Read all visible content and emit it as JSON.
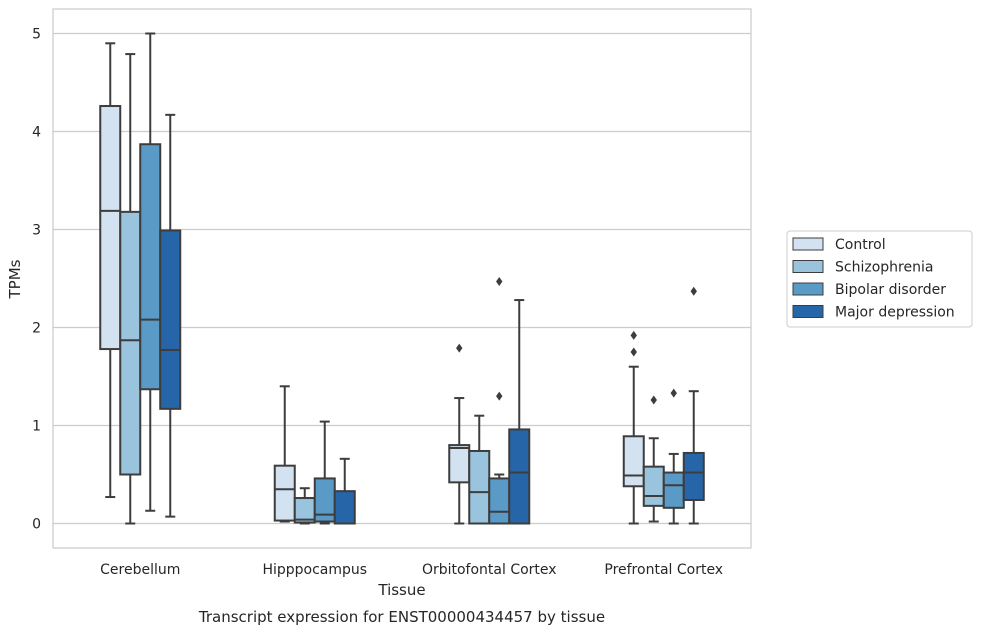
{
  "caption": "Transcript expression for ENST00000434457 by tissue",
  "chart_data": {
    "type": "box",
    "xlabel": "Tissue",
    "ylabel": "TPMs",
    "ylim": [
      -0.25,
      5.25
    ],
    "yticks": [
      0,
      1,
      2,
      3,
      4,
      5
    ],
    "grid": true,
    "legend_placement": "right",
    "categories": [
      "Cerebellum",
      "Hipppocampus",
      "Orbitofontal Cortex",
      "Prefrontal Cortex"
    ],
    "series": [
      {
        "name": "Control",
        "color": "#d2e2f1",
        "boxes": [
          {
            "whislo": 0.27,
            "q1": 1.78,
            "med": 3.19,
            "q3": 4.26,
            "whishi": 4.9,
            "fliers": []
          },
          {
            "whislo": 0.02,
            "q1": 0.03,
            "med": 0.35,
            "q3": 0.59,
            "whishi": 1.4,
            "fliers": []
          },
          {
            "whislo": 0.0,
            "q1": 0.42,
            "med": 0.77,
            "q3": 0.8,
            "whishi": 1.28,
            "fliers": [
              1.79
            ]
          },
          {
            "whislo": 0.0,
            "q1": 0.38,
            "med": 0.49,
            "q3": 0.89,
            "whishi": 1.6,
            "fliers": [
              1.75,
              1.92
            ]
          }
        ]
      },
      {
        "name": "Schizophrenia",
        "color": "#9ac3de",
        "boxes": [
          {
            "whislo": 0.0,
            "q1": 0.5,
            "med": 1.87,
            "q3": 3.18,
            "whishi": 4.79,
            "fliers": []
          },
          {
            "whislo": 0.0,
            "q1": 0.01,
            "med": 0.04,
            "q3": 0.26,
            "whishi": 0.36,
            "fliers": []
          },
          {
            "whislo": 0.0,
            "q1": 0.0,
            "med": 0.32,
            "q3": 0.74,
            "whishi": 1.1,
            "fliers": []
          },
          {
            "whislo": 0.02,
            "q1": 0.18,
            "med": 0.28,
            "q3": 0.58,
            "whishi": 0.87,
            "fliers": [
              1.26
            ]
          }
        ]
      },
      {
        "name": "Bipolar disorder",
        "color": "#5a9ac7",
        "boxes": [
          {
            "whislo": 0.13,
            "q1": 1.37,
            "med": 2.08,
            "q3": 3.87,
            "whishi": 5.0,
            "fliers": []
          },
          {
            "whislo": 0.0,
            "q1": 0.02,
            "med": 0.09,
            "q3": 0.46,
            "whishi": 1.04,
            "fliers": []
          },
          {
            "whislo": 0.0,
            "q1": 0.0,
            "med": 0.12,
            "q3": 0.46,
            "whishi": 0.5,
            "fliers": [
              1.3,
              2.47
            ]
          },
          {
            "whislo": 0.0,
            "q1": 0.16,
            "med": 0.39,
            "q3": 0.52,
            "whishi": 0.71,
            "fliers": [
              1.33
            ]
          }
        ]
      },
      {
        "name": "Major depression",
        "color": "#2666a8",
        "boxes": [
          {
            "whislo": 0.07,
            "q1": 1.17,
            "med": 1.77,
            "q3": 2.99,
            "whishi": 4.17,
            "fliers": []
          },
          {
            "whislo": 0.0,
            "q1": 0.0,
            "med": 0.0,
            "q3": 0.33,
            "whishi": 0.66,
            "fliers": []
          },
          {
            "whislo": 0.0,
            "q1": 0.0,
            "med": 0.52,
            "q3": 0.96,
            "whishi": 2.28,
            "fliers": []
          },
          {
            "whislo": 0.0,
            "q1": 0.24,
            "med": 0.52,
            "q3": 0.72,
            "whishi": 1.35,
            "fliers": [
              2.37
            ]
          }
        ]
      }
    ]
  }
}
